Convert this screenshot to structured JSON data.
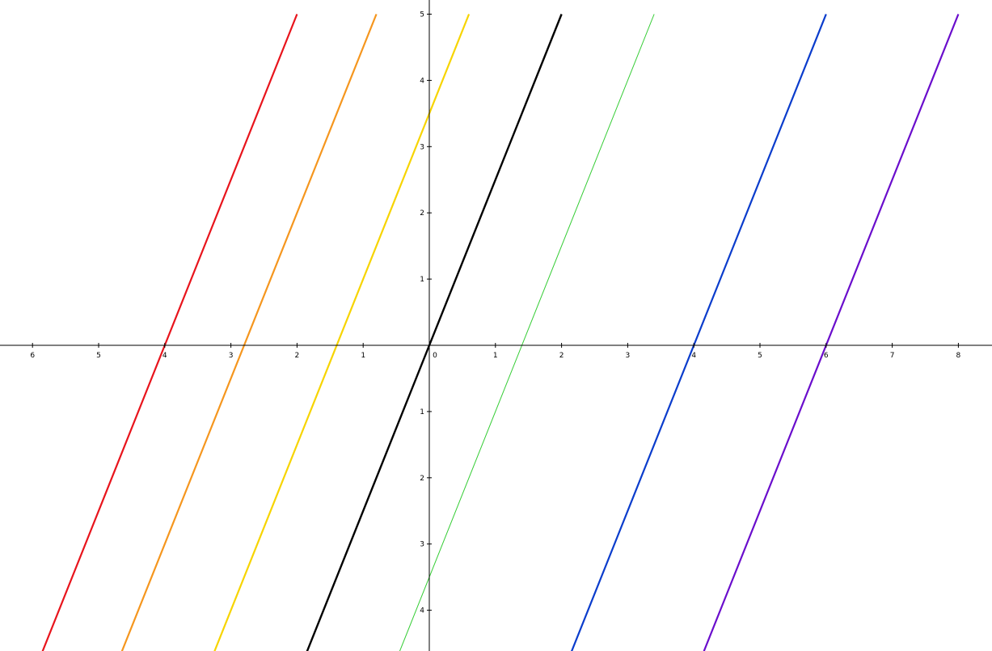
{
  "chart_data": {
    "type": "line",
    "title": "",
    "xlabel": "",
    "ylabel": "",
    "xlim": [
      -6.5,
      8.5
    ],
    "ylim": [
      -4.6,
      5.2
    ],
    "grid": false,
    "legend": "none",
    "x_ticks": [
      {
        "value": -6,
        "label": "6"
      },
      {
        "value": -5,
        "label": "5"
      },
      {
        "value": -4,
        "label": "4"
      },
      {
        "value": -3,
        "label": "3"
      },
      {
        "value": -2,
        "label": "2"
      },
      {
        "value": -1,
        "label": "1"
      },
      {
        "value": 0,
        "label": "0"
      },
      {
        "value": 1,
        "label": "1"
      },
      {
        "value": 2,
        "label": "2"
      },
      {
        "value": 3,
        "label": "3"
      },
      {
        "value": 4,
        "label": "4"
      },
      {
        "value": 5,
        "label": "5"
      },
      {
        "value": 6,
        "label": "6"
      },
      {
        "value": 7,
        "label": "7"
      },
      {
        "value": 8,
        "label": "8"
      }
    ],
    "y_ticks": [
      {
        "value": -4,
        "label": "4"
      },
      {
        "value": -3,
        "label": "3"
      },
      {
        "value": -2,
        "label": "2"
      },
      {
        "value": -1,
        "label": "1"
      },
      {
        "value": 1,
        "label": "1"
      },
      {
        "value": 2,
        "label": "2"
      },
      {
        "value": 3,
        "label": "3"
      },
      {
        "value": 4,
        "label": "4"
      },
      {
        "value": 5,
        "label": "5"
      }
    ],
    "series": [
      {
        "color": "#e8141c",
        "width": 2.2,
        "points": [
          [
            -6,
            -5
          ],
          [
            -2,
            5
          ]
        ]
      },
      {
        "color": "#f5961e",
        "width": 2.2,
        "points": [
          [
            -4.8,
            -5
          ],
          [
            -0.8,
            5
          ]
        ]
      },
      {
        "color": "#f7d400",
        "width": 2.2,
        "points": [
          [
            -3.4,
            -5
          ],
          [
            0.6,
            5
          ]
        ]
      },
      {
        "color": "#000000",
        "width": 2.4,
        "points": [
          [
            -2,
            -5
          ],
          [
            2,
            5
          ]
        ]
      },
      {
        "color": "#33cc33",
        "width": 1.0,
        "points": [
          [
            -0.6,
            -5
          ],
          [
            3.4,
            5
          ]
        ]
      },
      {
        "color": "#0a3ccc",
        "width": 2.2,
        "points": [
          [
            2,
            -5
          ],
          [
            6,
            5
          ]
        ]
      },
      {
        "color": "#6a0dcc",
        "width": 2.2,
        "points": [
          [
            4,
            -5
          ],
          [
            8,
            5
          ]
        ]
      }
    ]
  }
}
